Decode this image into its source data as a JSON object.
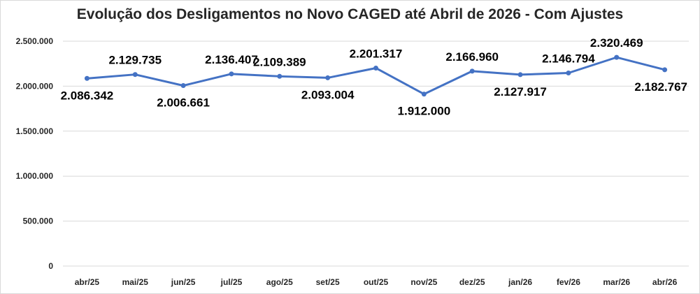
{
  "chart_data": {
    "type": "line",
    "title": "Evolução dos Desligamentos no Novo CAGED até Abril de 2026 - Com Ajustes",
    "xlabel": "",
    "ylabel": "",
    "ylim": [
      0,
      2500000
    ],
    "yticks": [
      "0",
      "500.000",
      "1.000.000",
      "1.500.000",
      "2.000.000",
      "2.500.000"
    ],
    "grid": true,
    "categories": [
      "abr/25",
      "mai/25",
      "jun/25",
      "jul/25",
      "ago/25",
      "set/25",
      "out/25",
      "nov/25",
      "dez/25",
      "jan/26",
      "fev/26",
      "mar/26",
      "abr/26"
    ],
    "series": [
      {
        "values": [
          2086342,
          2129735,
          2006661,
          2136407,
          2109389,
          2093004,
          2201317,
          1912000,
          2166960,
          2127917,
          2146794,
          2320469,
          2182767
        ],
        "labels": [
          "2.086.342",
          "2.129.735",
          "2.006.661",
          "2.136.407",
          "2.109.389",
          "2.093.004",
          "2.201.317",
          "1.912.000",
          "2.166.960",
          "2.127.917",
          "2.146.794",
          "2.320.469",
          "2.182.767"
        ]
      }
    ],
    "line_color": "#4472c4",
    "grid_color": "#d9d9d9"
  }
}
